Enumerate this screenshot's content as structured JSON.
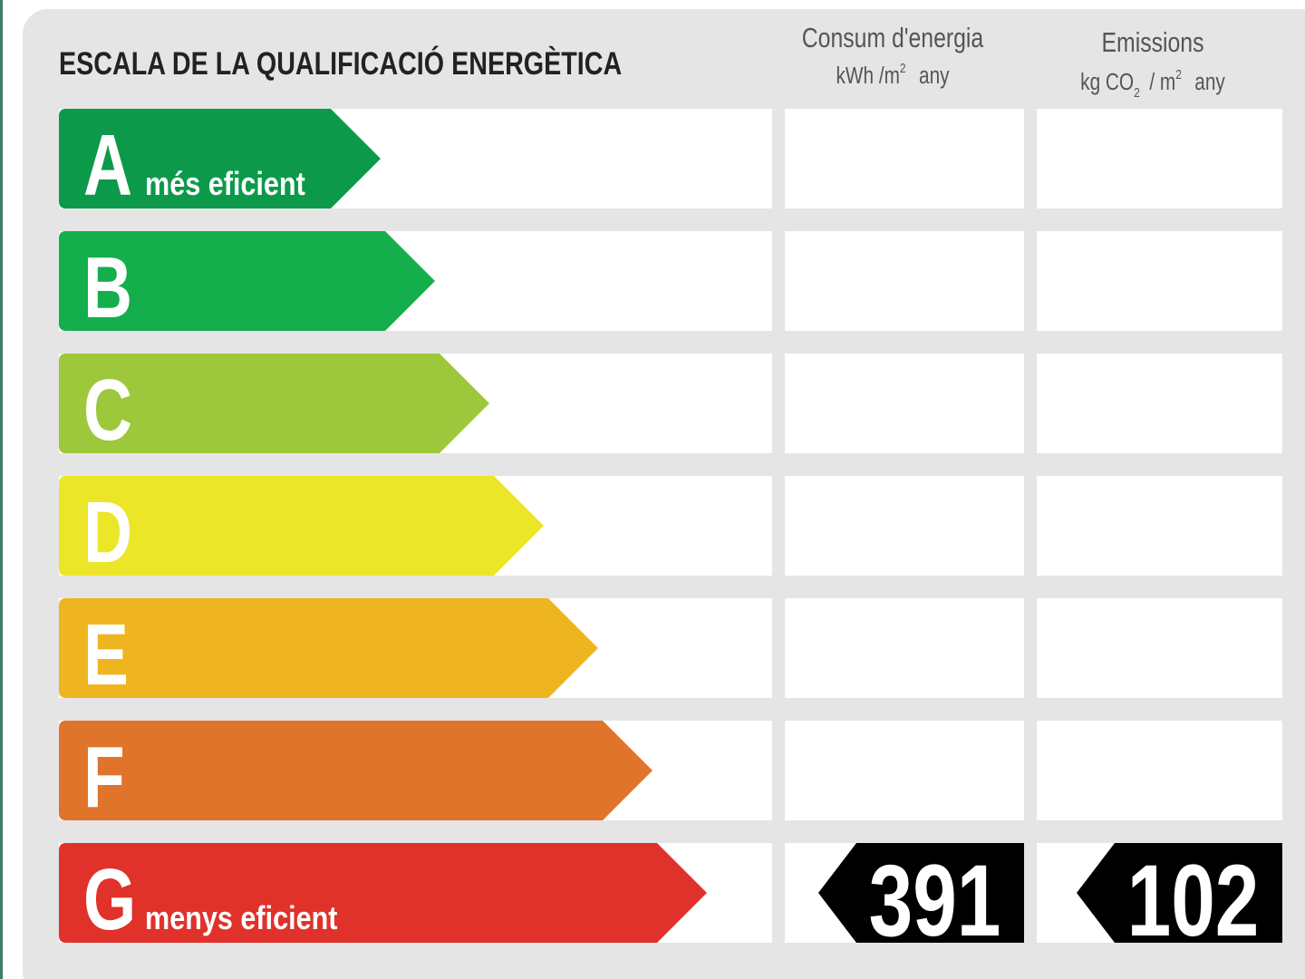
{
  "header": {
    "title": "ESCALA DE LA QUALIFICACIÓ ENERGÈTICA",
    "energy": {
      "title": "Consum d'energia",
      "unit": [
        "kWh /m",
        "2",
        "any"
      ]
    },
    "emissions": {
      "title": "Emissions",
      "unit": [
        "kg CO",
        "2",
        " / m",
        "2",
        "any"
      ]
    }
  },
  "rows": [
    {
      "letter": "A",
      "label": "més eficient",
      "color": "#0c9a4a"
    },
    {
      "letter": "B",
      "color": "#14ae4c"
    },
    {
      "letter": "C",
      "color": "#9dc83c"
    },
    {
      "letter": "D",
      "color": "#ebe627"
    },
    {
      "letter": "E",
      "color": "#eeb520"
    },
    {
      "letter": "F",
      "color": "#e0742a"
    },
    {
      "letter": "G",
      "label": "menys eficient",
      "color": "#e1312b",
      "energy": 391,
      "emissions": 102
    }
  ]
}
